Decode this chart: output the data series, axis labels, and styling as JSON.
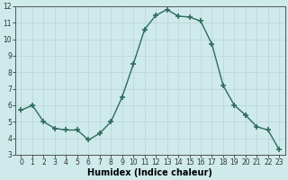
{
  "x": [
    0,
    1,
    2,
    3,
    4,
    5,
    6,
    7,
    8,
    9,
    10,
    11,
    12,
    13,
    14,
    15,
    16,
    17,
    18,
    19,
    20,
    21,
    22,
    23
  ],
  "y": [
    5.7,
    6.0,
    5.0,
    4.6,
    4.5,
    4.5,
    3.9,
    4.3,
    5.0,
    6.5,
    8.5,
    10.6,
    11.45,
    11.8,
    11.4,
    11.35,
    11.1,
    9.7,
    7.2,
    6.0,
    5.4,
    4.7,
    4.5,
    3.3
  ],
  "line_color": "#2e6b5e",
  "marker": "+",
  "marker_size": 4,
  "marker_lw": 1.2,
  "line_width": 1.0,
  "bg_color": "#ceeaea",
  "grid_color_major": "#b8d4d4",
  "grid_color_minor": "#d4e8e8",
  "xlabel": "Humidex (Indice chaleur)",
  "ylim": [
    3,
    12
  ],
  "xlim": [
    -0.5,
    23.5
  ],
  "yticks": [
    3,
    4,
    5,
    6,
    7,
    8,
    9,
    10,
    11,
    12
  ],
  "xticks": [
    0,
    1,
    2,
    3,
    4,
    5,
    6,
    7,
    8,
    9,
    10,
    11,
    12,
    13,
    14,
    15,
    16,
    17,
    18,
    19,
    20,
    21,
    22,
    23
  ],
  "tick_label_fontsize": 5.5,
  "xlabel_fontsize": 7,
  "spine_color": "#555555"
}
